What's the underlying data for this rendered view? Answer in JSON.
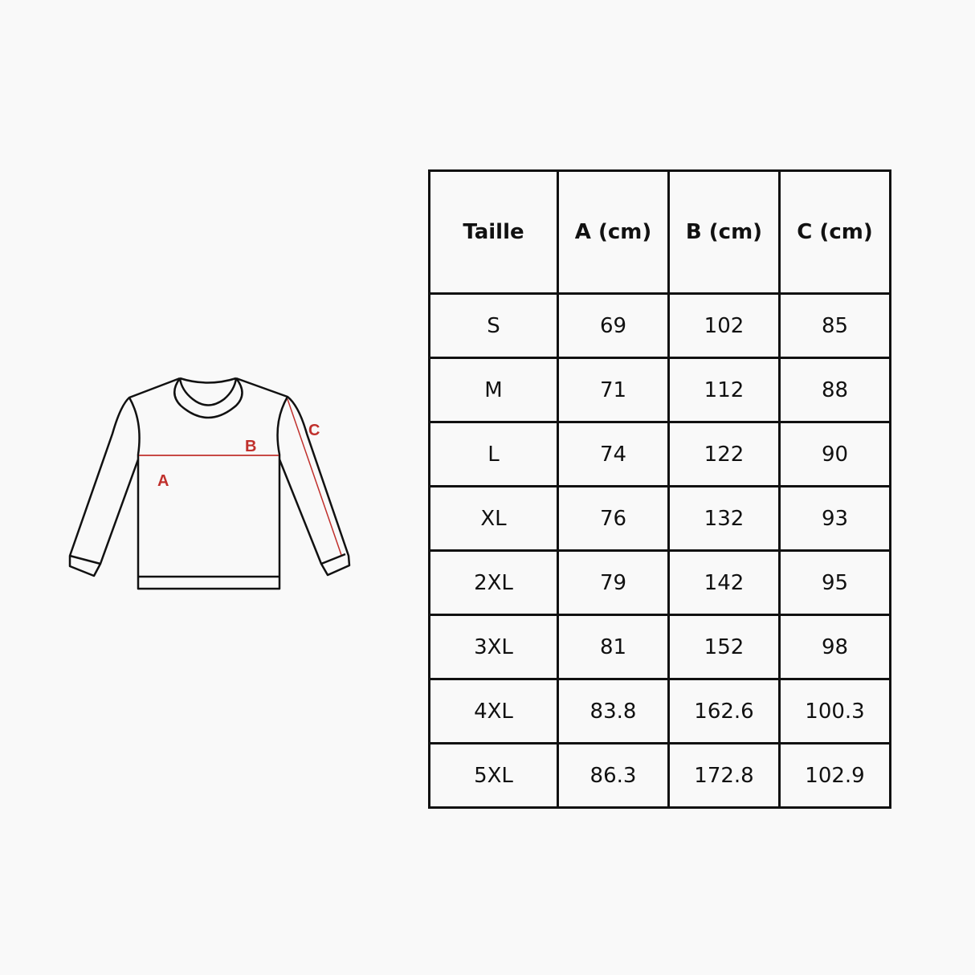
{
  "diagram": {
    "labels": {
      "a": "A",
      "b": "B",
      "c": "C"
    },
    "measure_color": "#c0302c",
    "outline_color": "#111111"
  },
  "table": {
    "headers": [
      "Taille",
      "A (cm)",
      "B (cm)",
      "C (cm)"
    ],
    "rows": [
      [
        "S",
        "69",
        "102",
        "85"
      ],
      [
        "M",
        "71",
        "112",
        "88"
      ],
      [
        "L",
        "74",
        "122",
        "90"
      ],
      [
        "XL",
        "76",
        "132",
        "93"
      ],
      [
        "2XL",
        "79",
        "142",
        "95"
      ],
      [
        "3XL",
        "81",
        "152",
        "98"
      ],
      [
        "4XL",
        "83.8",
        "162.6",
        "100.3"
      ],
      [
        "5XL",
        "86.3",
        "172.8",
        "102.9"
      ]
    ]
  }
}
